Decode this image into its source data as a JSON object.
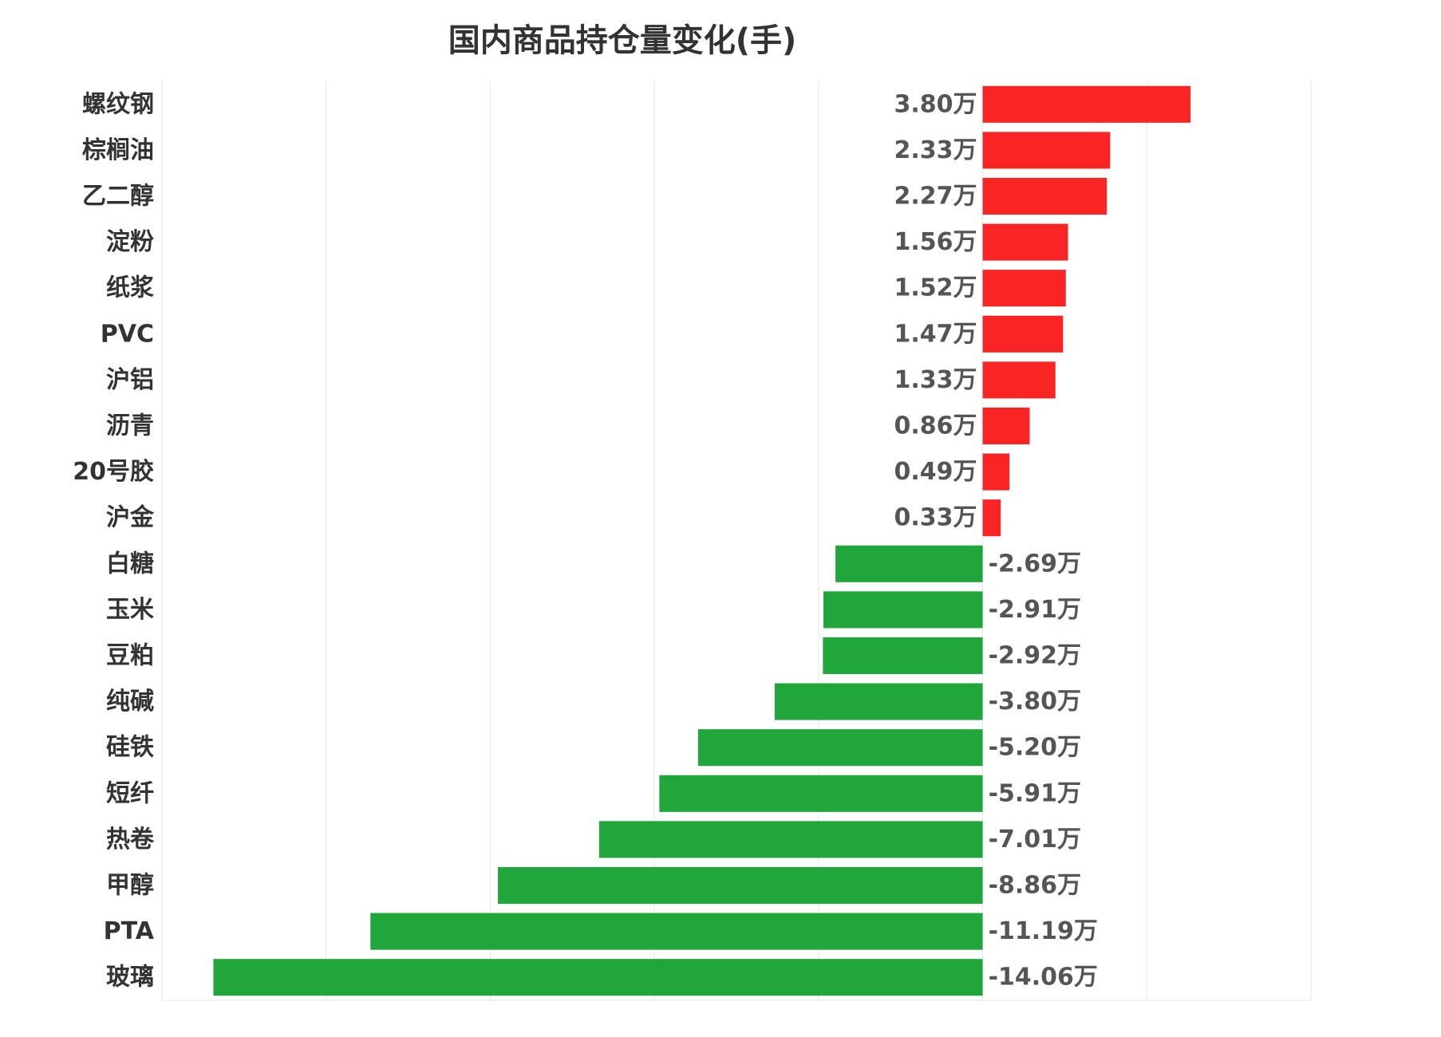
{
  "chart_data": {
    "type": "bar",
    "orientation": "horizontal",
    "title": "国内商品持仓量变化(手)",
    "unit": "万",
    "grid": true,
    "categories": [
      "螺纹钢",
      "棕榈油",
      "乙二醇",
      "淀粉",
      "纸浆",
      "PVC",
      "沪铝",
      "沥青",
      "20号胶",
      "沪金",
      "白糖",
      "玉米",
      "豆粕",
      "纯碱",
      "硅铁",
      "短纤",
      "热卷",
      "甲醇",
      "PTA",
      "玻璃"
    ],
    "values": [
      3.8,
      2.33,
      2.27,
      1.56,
      1.52,
      1.47,
      1.33,
      0.86,
      0.49,
      0.33,
      -2.69,
      -2.91,
      -2.92,
      -3.8,
      -5.2,
      -5.91,
      -7.01,
      -8.86,
      -11.19,
      -14.06
    ],
    "data_labels": [
      "3.80万",
      "2.33万",
      "2.27万",
      "1.56万",
      "1.52万",
      "1.47万",
      "1.33万",
      "0.86万",
      "0.49万",
      "0.33万",
      "-2.69万",
      "-2.91万",
      "-2.92万",
      "-3.80万",
      "-5.20万",
      "-5.91万",
      "-7.01万",
      "-8.86万",
      "-11.19万",
      "-14.06万"
    ],
    "xlim": [
      -15,
      6
    ],
    "gridlines": [
      -15,
      -12,
      -9,
      -6,
      -3,
      0,
      3,
      6
    ],
    "colors": {
      "positive": "#f92525",
      "negative": "#20a63b",
      "grid": "#e6e6e6"
    }
  }
}
